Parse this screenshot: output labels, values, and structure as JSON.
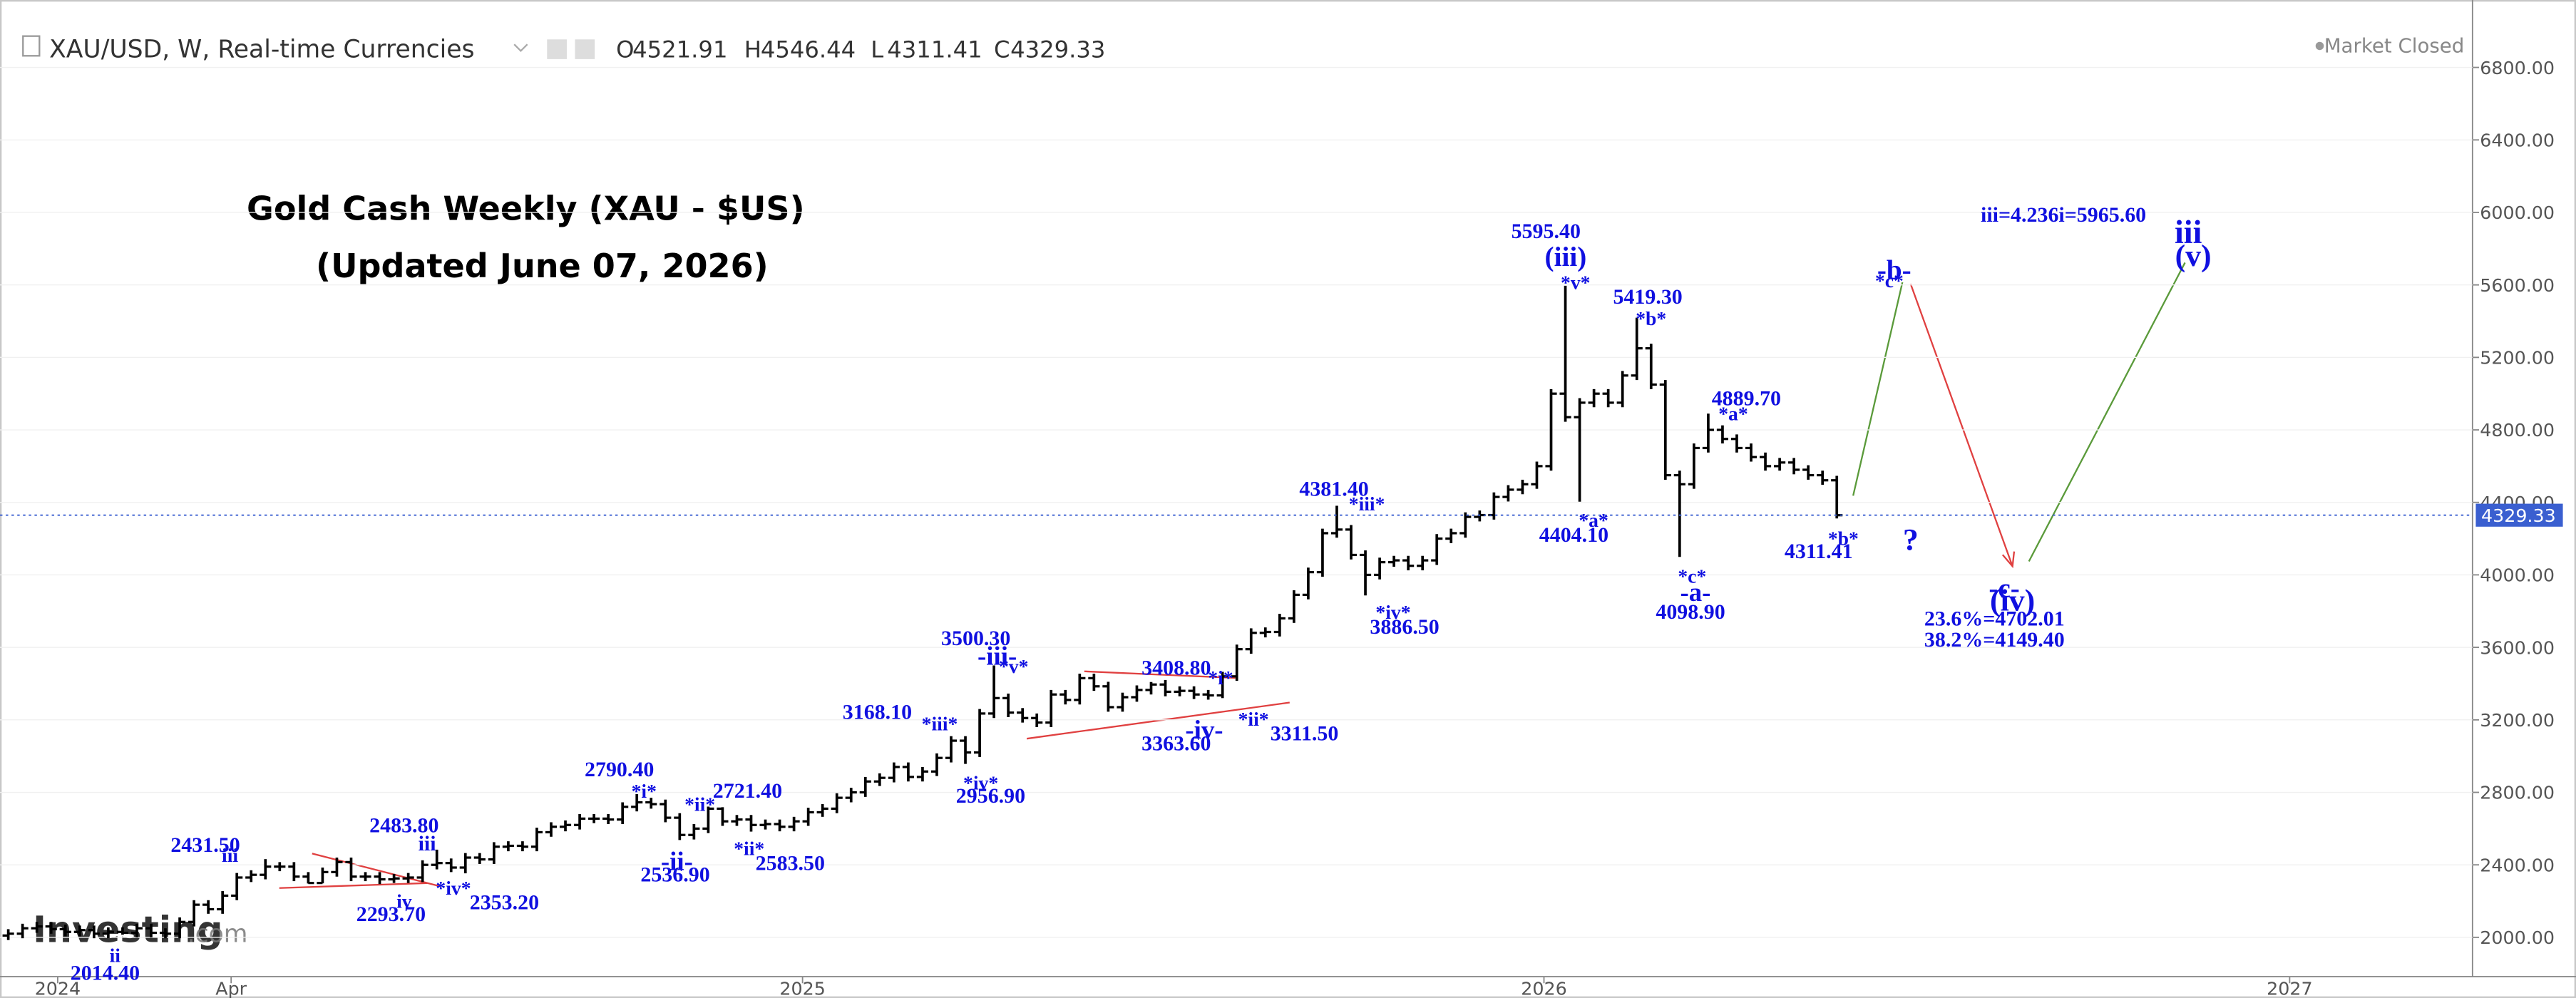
{
  "header": {
    "symbol": "XAU/USD, W, Real-time Currencies",
    "ohlc_labels": [
      "O",
      "H",
      "L",
      "C"
    ],
    "market_status": "Market Closed",
    "watermark": [
      "Investing",
      ".com"
    ]
  },
  "chart_data": {
    "type": "ohlc",
    "title": "Gold Cash Weekly (XAU - $US)",
    "subtitle": "(Updated June 07, 2026)",
    "color": "#000000",
    "annotation_color": "#1010e0",
    "price_line_color": "#3a5fd0",
    "xlim": [
      -0.58,
      172.5
    ],
    "xticks": [
      {
        "value": 3.46,
        "label": "2024"
      },
      {
        "value": 15.6,
        "label": "Apr"
      },
      {
        "value": 55.6,
        "label": "2025"
      },
      {
        "value": 107.5,
        "label": "2026"
      },
      {
        "value": 159.7,
        "label": "2027"
      }
    ],
    "ylim": [
      1783,
      7172
    ],
    "yticks": [
      {
        "value": 2000,
        "label": "2000.00"
      },
      {
        "value": 2400,
        "label": "2400.00"
      },
      {
        "value": 2800,
        "label": "2800.00"
      },
      {
        "value": 3200,
        "label": "3200.00"
      },
      {
        "value": 3600,
        "label": "3600.00"
      },
      {
        "value": 4000,
        "label": "4000.00"
      },
      {
        "value": 4400,
        "label": "4400.00"
      },
      {
        "value": 4800,
        "label": "4800.00"
      },
      {
        "value": 5200,
        "label": "5200.00"
      },
      {
        "value": 5600,
        "label": "5600.00"
      },
      {
        "value": 6000,
        "label": "6000.00"
      },
      {
        "value": 6400,
        "label": "6400.00"
      },
      {
        "value": 6800,
        "label": "6800.00"
      }
    ],
    "open": [
      2010,
      2020,
      2050,
      2060,
      2045,
      2030,
      2040,
      2020,
      2030,
      2025,
      2050,
      2025,
      2020,
      2085,
      2180,
      2155,
      2230,
      2330,
      2345,
      2390,
      2390,
      2335,
      2300,
      2360,
      2415,
      2335,
      2335,
      2320,
      2325,
      2330,
      2400,
      2410,
      2385,
      2440,
      2430,
      2500,
      2505,
      2500,
      2580,
      2610,
      2620,
      2655,
      2655,
      2650,
      2720,
      2745,
      2735,
      2660,
      2565,
      2600,
      2710,
      2640,
      2650,
      2620,
      2625,
      2610,
      2640,
      2690,
      2710,
      2770,
      2800,
      2860,
      2880,
      2940,
      2885,
      2915,
      2990,
      3085,
      3020,
      3235,
      3320,
      3240,
      3210,
      3185,
      3340,
      3310,
      3430,
      3385,
      3270,
      3325,
      3365,
      3395,
      3355,
      3360,
      3340,
      3335,
      3440,
      3590,
      3680,
      3685,
      3760,
      3890,
      4015,
      4230,
      4250,
      4110,
      4000,
      4070,
      4080,
      4050,
      4080,
      4200,
      4230,
      4320,
      4330,
      4430,
      4470,
      4500,
      4600,
      5000,
      4870,
      4950,
      5000,
      4950,
      5100,
      5250,
      5050,
      4550,
      4500,
      4700,
      4800,
      4750,
      4700,
      4650,
      4600,
      4620,
      4580,
      4550,
      4521.91
    ],
    "high": [
      2045,
      2075,
      2085,
      2085,
      2070,
      2065,
      2065,
      2055,
      2055,
      2075,
      2075,
      2050,
      2110,
      2205,
      2205,
      2255,
      2355,
      2370,
      2431.5,
      2415,
      2415,
      2360,
      2385,
      2440,
      2440,
      2360,
      2360,
      2350,
      2355,
      2425,
      2483.8,
      2435,
      2465,
      2465,
      2525,
      2530,
      2530,
      2605,
      2635,
      2645,
      2680,
      2680,
      2680,
      2745,
      2790.4,
      2770,
      2760,
      2685,
      2625,
      2721.4,
      2718,
      2675,
      2675,
      2650,
      2650,
      2665,
      2715,
      2735,
      2795,
      2825,
      2885,
      2905,
      2965,
      2965,
      2940,
      3015,
      3110,
      3110,
      3260,
      3500.3,
      3345,
      3265,
      3235,
      3365,
      3365,
      3455,
      3455,
      3410,
      3350,
      3390,
      3408.8,
      3420,
      3385,
      3385,
      3365,
      3465,
      3615,
      3705,
      3710,
      3785,
      3915,
      4040,
      4255,
      4381.4,
      4275,
      4135,
      4095,
      4105,
      4105,
      4105,
      4225,
      4255,
      4345,
      4355,
      4455,
      4495,
      4525,
      4625,
      5025,
      5595.4,
      4975,
      5025,
      5025,
      5125,
      5419.3,
      5275,
      5075,
      4575,
      4725,
      4889.7,
      4825,
      4775,
      4725,
      4675,
      4645,
      4645,
      4605,
      4575,
      4546.44
    ],
    "low": [
      1985,
      1995,
      2025,
      2020,
      2005,
      2005,
      1995,
      1995,
      2014.4,
      2000,
      2000,
      1995,
      1995,
      2060,
      2130,
      2130,
      2205,
      2305,
      2320,
      2365,
      2310,
      2297,
      2298,
      2335,
      2310,
      2310,
      2293.7,
      2300,
      2300,
      2305,
      2375,
      2360,
      2353.2,
      2405,
      2405,
      2475,
      2475,
      2475,
      2555,
      2585,
      2595,
      2630,
      2625,
      2625,
      2695,
      2710,
      2635,
      2536.9,
      2540,
      2575,
      2615,
      2615,
      2583.5,
      2595,
      2585,
      2585,
      2615,
      2665,
      2685,
      2745,
      2775,
      2835,
      2855,
      2860,
      2860,
      2890,
      2965,
      2956.9,
      2995,
      3210,
      3215,
      3185,
      3160,
      3160,
      3285,
      3285,
      3360,
      3245,
      3245,
      3300,
      3340,
      3330,
      3330,
      3315,
      3311.5,
      3320,
      3415,
      3565,
      3655,
      3660,
      3735,
      3865,
      3990,
      4205,
      4085,
      3886.5,
      3975,
      4045,
      4025,
      4025,
      4055,
      4175,
      4205,
      4295,
      4305,
      4405,
      4445,
      4475,
      4575,
      4845,
      4404.1,
      4925,
      4925,
      4925,
      5075,
      5025,
      4525,
      4098.9,
      4475,
      4675,
      4725,
      4675,
      4625,
      4575,
      4575,
      4555,
      4525,
      4497,
      4311.41
    ],
    "close": [
      2020,
      2050,
      2060,
      2045,
      2030,
      2040,
      2020,
      2030,
      2025,
      2050,
      2025,
      2020,
      2085,
      2180,
      2155,
      2230,
      2330,
      2345,
      2390,
      2390,
      2335,
      2300,
      2360,
      2415,
      2335,
      2335,
      2320,
      2325,
      2330,
      2400,
      2410,
      2385,
      2440,
      2430,
      2500,
      2505,
      2500,
      2580,
      2610,
      2620,
      2655,
      2655,
      2650,
      2720,
      2745,
      2735,
      2660,
      2565,
      2600,
      2710,
      2640,
      2650,
      2620,
      2625,
      2610,
      2640,
      2690,
      2710,
      2770,
      2800,
      2860,
      2880,
      2940,
      2885,
      2915,
      2990,
      3085,
      3020,
      3235,
      3320,
      3240,
      3210,
      3185,
      3340,
      3310,
      3430,
      3385,
      3270,
      3325,
      3365,
      3395,
      3355,
      3360,
      3340,
      3335,
      3440,
      3590,
      3680,
      3685,
      3760,
      3890,
      4015,
      4230,
      4250,
      4110,
      4000,
      4070,
      4080,
      4050,
      4080,
      4200,
      4230,
      4320,
      4330,
      4430,
      4470,
      4500,
      4600,
      5000,
      4870,
      4950,
      5000,
      4950,
      5100,
      5250,
      5050,
      4550,
      4500,
      4700,
      4800,
      4750,
      4700,
      4650,
      4600,
      4620,
      4580,
      4550,
      4521.91,
      4329.33
    ],
    "annotations": [
      "5595.40",
      "(iii)",
      "*v*",
      "5419.30",
      "*b*",
      "4889.70",
      "*a*",
      "*a*",
      "4404.10",
      "*c*",
      "-a-",
      "4098.90",
      "*b*",
      "4311.41",
      "?",
      "4381.40",
      "*iii*",
      "*iv*",
      "3886.50",
      "iii=4.236i=5965.60",
      "-b-",
      "*c*",
      "iii",
      "(v)",
      "-c-",
      "(iv)",
      "23.6%=4702.01",
      "38.2%=4149.40",
      "3500.30",
      "-iii-",
      "*v*",
      "3408.80",
      "*i*",
      "-iv-",
      "3363.60",
      "*ii*",
      "3311.50",
      "3168.10",
      "*iii*",
      "*iv*",
      "2956.90",
      "2790.40",
      "*i*",
      "*ii*",
      "2721.40",
      "-ii-",
      "2536.90",
      "*ii*",
      "2583.50",
      "2483.80",
      "iii",
      "*iv*",
      "2353.20",
      "2293.70",
      "iv",
      "2431.50",
      "iii",
      "ii",
      "2014.40"
    ]
  }
}
